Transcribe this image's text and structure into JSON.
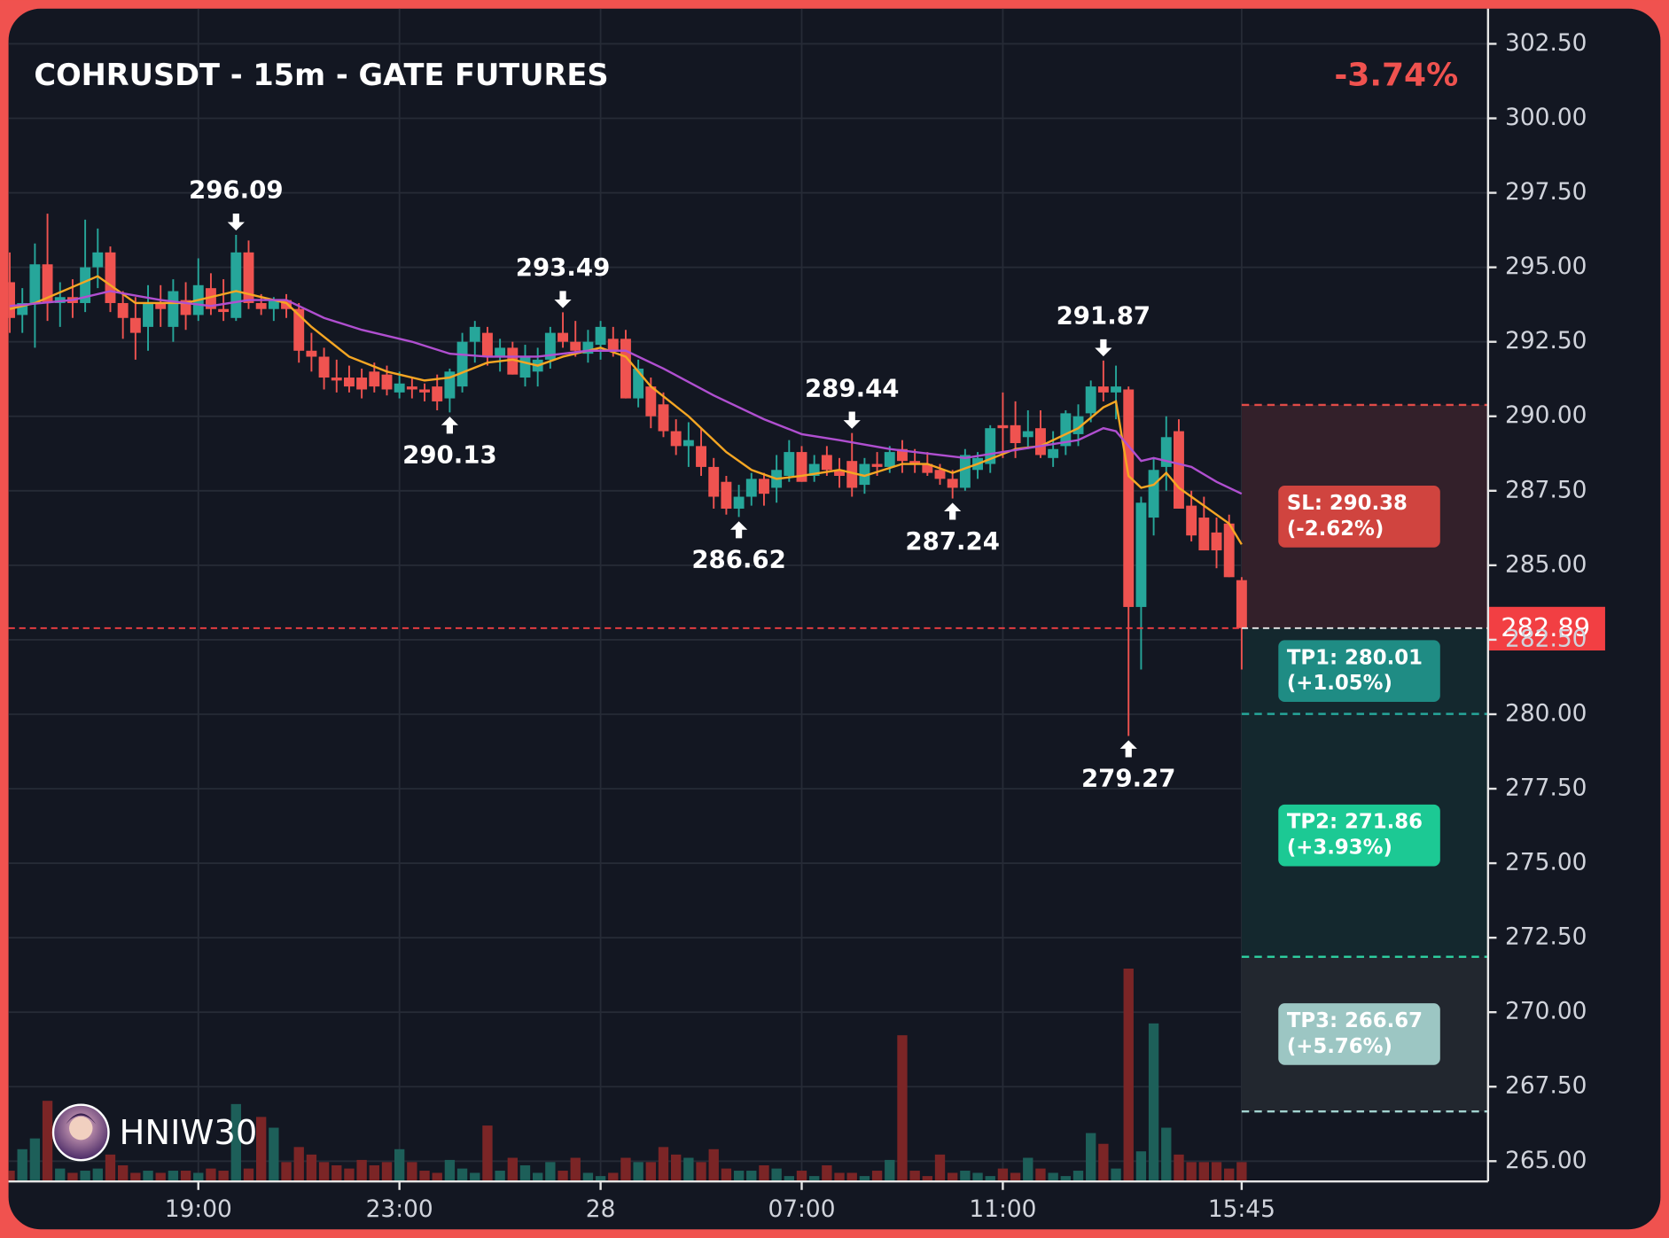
{
  "chart_data": {
    "type": "candlestick",
    "title": "COHRUSDT - 15m - GATE FUTURES",
    "change": "-3.74%",
    "watermark": "HNIW30",
    "up_color": "#26a69a",
    "down_color": "#ef5350",
    "volume_up_color": "#1d5f59",
    "volume_down_color": "#7b2526",
    "grid": true,
    "xlim": [
      -0.1,
      117.6
    ],
    "xticks": [
      {
        "value": 15,
        "label": "19:00"
      },
      {
        "value": 31,
        "label": "23:00"
      },
      {
        "value": 47,
        "label": "28"
      },
      {
        "value": 63,
        "label": "07:00"
      },
      {
        "value": 79,
        "label": "11:00"
      },
      {
        "value": 98,
        "label": "15:45"
      }
    ],
    "ylim": [
      264.32,
      303.68
    ],
    "yticks": [
      {
        "value": 302.5,
        "label": "302.50"
      },
      {
        "value": 300,
        "label": "300.00"
      },
      {
        "value": 297.5,
        "label": "297.50"
      },
      {
        "value": 295,
        "label": "295.00"
      },
      {
        "value": 292.5,
        "label": "292.50"
      },
      {
        "value": 290,
        "label": "290.00"
      },
      {
        "value": 287.5,
        "label": "287.50"
      },
      {
        "value": 285,
        "label": "285.00"
      },
      {
        "value": 282.5,
        "label": "282.50"
      },
      {
        "value": 280,
        "label": "280.00"
      },
      {
        "value": 277.5,
        "label": "277.50"
      },
      {
        "value": 275,
        "label": "275.00"
      },
      {
        "value": 272.5,
        "label": "272.50"
      },
      {
        "value": 270,
        "label": "270.00"
      },
      {
        "value": 267.5,
        "label": "267.50"
      },
      {
        "value": 265,
        "label": "265.00"
      }
    ],
    "open": [
      294.5,
      293.4,
      293.8,
      295.1,
      293.8,
      294.0,
      293.8,
      295.0,
      295.5,
      293.8,
      293.3,
      293.0,
      293.8,
      293.0,
      293.9,
      293.4,
      294.3,
      293.6,
      293.3,
      295.5,
      293.8,
      293.6,
      293.9,
      293.6,
      292.2,
      292.0,
      291.3,
      291.3,
      291.3,
      291.5,
      291.4,
      290.8,
      291.0,
      290.9,
      291.0,
      290.6,
      291.0,
      292.5,
      292.8,
      292.0,
      292.3,
      291.3,
      291.5,
      291.9,
      292.8,
      292.5,
      292.1,
      292.4,
      292.6,
      292.6,
      290.6,
      291.0,
      290.4,
      289.5,
      289.0,
      289.0,
      288.3,
      287.8,
      286.9,
      287.3,
      287.9,
      287.6,
      288.0,
      288.8,
      288.0,
      288.7,
      288.2,
      288.5,
      287.7,
      288.4,
      288.3,
      288.9,
      288.5,
      288.4,
      288.2,
      287.9,
      287.6,
      288.2,
      288.4,
      289.7,
      289.7,
      289.3,
      289.6,
      288.6,
      289.0,
      289.4,
      290.1,
      291.0,
      290.8,
      290.9,
      283.6,
      286.6,
      288.3,
      289.5,
      287.0,
      286.6,
      286.1,
      286.4,
      284.5
    ],
    "high": [
      295.5,
      294.3,
      295.8,
      296.8,
      294.5,
      294.6,
      296.6,
      296.3,
      295.7,
      294.2,
      294.0,
      294.4,
      294.4,
      294.6,
      294.5,
      295.3,
      294.8,
      294.6,
      296.09,
      295.9,
      294.1,
      294.0,
      294.1,
      293.8,
      292.8,
      292.3,
      291.9,
      291.7,
      291.6,
      291.8,
      291.7,
      291.5,
      291.3,
      291.1,
      291.4,
      291.6,
      292.8,
      293.2,
      293.0,
      292.6,
      292.5,
      292.4,
      292.3,
      293.0,
      293.49,
      293.2,
      292.9,
      293.2,
      293.0,
      292.9,
      291.9,
      291.3,
      290.8,
      289.9,
      289.8,
      289.6,
      288.6,
      288.0,
      287.7,
      288.1,
      288.1,
      288.7,
      289.2,
      289.0,
      288.7,
      289.0,
      288.6,
      289.44,
      288.6,
      288.8,
      289.0,
      289.2,
      288.9,
      288.8,
      288.4,
      288.2,
      288.9,
      288.8,
      289.7,
      290.8,
      290.5,
      290.2,
      290.2,
      289.5,
      290.2,
      290.4,
      291.2,
      291.87,
      291.7,
      291.0,
      287.3,
      288.6,
      290.0,
      289.9,
      287.5,
      287.3,
      286.6,
      286.7,
      284.6
    ],
    "low": [
      292.8,
      292.8,
      292.3,
      293.2,
      293.0,
      293.3,
      293.5,
      294.3,
      293.5,
      292.6,
      291.9,
      292.2,
      293.0,
      292.5,
      292.9,
      293.2,
      293.4,
      293.2,
      293.2,
      293.6,
      293.4,
      293.2,
      293.3,
      291.8,
      291.5,
      290.9,
      290.8,
      290.8,
      290.6,
      290.8,
      290.7,
      290.6,
      290.6,
      290.5,
      290.2,
      290.13,
      290.8,
      291.8,
      291.7,
      291.5,
      291.4,
      291.0,
      291.0,
      291.6,
      292.3,
      292.0,
      291.8,
      291.9,
      292.0,
      290.6,
      290.3,
      289.6,
      289.3,
      288.7,
      288.3,
      288.0,
      286.9,
      286.7,
      286.62,
      287.0,
      287.0,
      287.1,
      287.8,
      287.8,
      287.8,
      288.0,
      287.6,
      287.3,
      287.4,
      288.0,
      288.1,
      288.1,
      288.1,
      288.0,
      287.7,
      287.24,
      287.5,
      287.9,
      288.1,
      288.6,
      288.6,
      288.9,
      288.6,
      288.3,
      288.7,
      289.0,
      289.8,
      290.5,
      289.9,
      279.27,
      281.5,
      286.0,
      287.5,
      286.9,
      285.8,
      285.5,
      284.9,
      284.6,
      281.5
    ],
    "close": [
      293.3,
      293.8,
      295.1,
      293.8,
      294.0,
      293.8,
      295.0,
      295.5,
      293.8,
      293.3,
      292.8,
      293.8,
      293.6,
      294.2,
      293.4,
      294.4,
      293.6,
      293.5,
      295.5,
      293.8,
      293.6,
      293.9,
      293.6,
      292.2,
      292.0,
      291.3,
      291.2,
      291.0,
      290.9,
      291.0,
      290.9,
      291.1,
      290.9,
      290.8,
      290.5,
      291.5,
      292.5,
      293.0,
      292.0,
      292.3,
      291.4,
      292.0,
      291.9,
      292.8,
      292.5,
      292.2,
      292.5,
      293.0,
      292.2,
      290.6,
      291.6,
      290.0,
      289.5,
      289.0,
      289.2,
      288.3,
      287.3,
      286.9,
      287.3,
      287.9,
      287.4,
      288.2,
      288.8,
      287.8,
      288.4,
      288.2,
      288.0,
      287.6,
      288.4,
      288.3,
      288.8,
      288.5,
      288.4,
      288.1,
      287.9,
      287.6,
      288.7,
      288.6,
      289.6,
      289.6,
      289.1,
      289.5,
      288.7,
      288.9,
      290.1,
      290.0,
      291.0,
      290.8,
      291.0,
      283.6,
      287.1,
      288.2,
      289.3,
      286.9,
      286.0,
      285.5,
      285.5,
      284.6,
      282.89
    ],
    "volume": [
      10,
      30,
      40,
      75,
      12,
      8,
      10,
      12,
      25,
      15,
      8,
      10,
      8,
      10,
      10,
      8,
      12,
      10,
      72,
      12,
      60,
      50,
      18,
      32,
      25,
      18,
      15,
      12,
      20,
      15,
      18,
      30,
      18,
      10,
      8,
      20,
      12,
      8,
      52,
      10,
      22,
      15,
      8,
      18,
      10,
      22,
      8,
      5,
      8,
      22,
      18,
      18,
      32,
      25,
      22,
      18,
      30,
      12,
      10,
      10,
      15,
      12,
      5,
      10,
      5,
      15,
      8,
      8,
      5,
      10,
      20,
      136,
      10,
      5,
      25,
      8,
      10,
      8,
      5,
      12,
      8,
      22,
      12,
      8,
      5,
      10,
      45,
      35,
      12,
      198,
      28,
      147,
      50,
      25,
      18,
      18,
      18,
      12,
      18
    ],
    "series": [
      {
        "color": "#f5a623",
        "x": [
          0,
          2,
          7,
          10,
          14,
          18,
          20,
          22,
          24,
          27,
          30,
          33,
          35,
          38,
          40,
          42,
          44,
          47,
          49,
          51,
          54,
          57,
          59,
          61,
          63,
          66,
          68,
          71,
          73,
          75,
          77,
          80,
          82,
          85,
          87,
          88,
          89,
          90,
          91,
          92,
          93,
          95,
          97,
          98
        ],
        "values": [
          293.6,
          293.8,
          294.7,
          293.8,
          293.8,
          294.2,
          294.0,
          293.8,
          293.0,
          292.0,
          291.5,
          291.2,
          291.3,
          291.8,
          291.9,
          291.7,
          292.0,
          292.3,
          292.0,
          291.0,
          290.0,
          288.8,
          288.2,
          287.9,
          288.0,
          288.2,
          288.0,
          288.4,
          288.4,
          288.1,
          288.4,
          288.9,
          289.0,
          289.6,
          290.3,
          290.5,
          288.0,
          287.6,
          287.7,
          288.1,
          287.6,
          287.0,
          286.4,
          285.7
        ]
      },
      {
        "color": "#b04fd0",
        "x": [
          0,
          5,
          8,
          12,
          16,
          19,
          22,
          25,
          28,
          32,
          35,
          38,
          42,
          46,
          49,
          52,
          56,
          60,
          63,
          66,
          70,
          74,
          76,
          79,
          82,
          85,
          87,
          88,
          90,
          91,
          94,
          96,
          98
        ],
        "values": [
          293.7,
          293.9,
          294.2,
          293.9,
          293.7,
          293.9,
          293.9,
          293.3,
          292.9,
          292.5,
          292.1,
          292.0,
          292.0,
          292.2,
          292.2,
          291.6,
          290.7,
          289.9,
          289.4,
          289.2,
          288.9,
          288.7,
          288.6,
          288.8,
          289.0,
          289.2,
          289.6,
          289.5,
          288.5,
          288.6,
          288.3,
          287.8,
          287.4
        ]
      }
    ],
    "annotations": [
      {
        "x": 18,
        "value": 296.09,
        "side": "high"
      },
      {
        "x": 35,
        "value": 290.13,
        "side": "low"
      },
      {
        "x": 44,
        "value": 293.49,
        "side": "high"
      },
      {
        "x": 58,
        "value": 286.62,
        "side": "low"
      },
      {
        "x": 67,
        "value": 289.44,
        "side": "high"
      },
      {
        "x": 75,
        "value": 287.24,
        "side": "low"
      },
      {
        "x": 87,
        "value": 291.87,
        "side": "high"
      },
      {
        "x": 89,
        "value": 279.27,
        "side": "low"
      }
    ],
    "current_price": 282.89,
    "current_price_color": "#f23f43",
    "levels": [
      {
        "label": "SL: 290.38",
        "change": "(-2.62%)",
        "value": 290.38,
        "color": "#e04a47",
        "box_color": "#d0443f",
        "zone_color": "#33202a"
      },
      {
        "label": "TP1: 280.01",
        "change": "(+1.05%)",
        "value": 280.01,
        "color": "#26a69a",
        "box_color": "#1f8c84",
        "zone_color": "#14282e"
      },
      {
        "label": "TP2: 271.86",
        "change": "(+3.93%)",
        "value": 271.86,
        "color": "#2ed3a3",
        "box_color": "#1cc994",
        "zone_color": "#14282e"
      },
      {
        "label": "TP3: 266.67",
        "change": "(+5.76%)",
        "value": 266.67,
        "color": "#a2d3d0",
        "box_color": "#9cc6c3",
        "zone_color": "#22272f"
      }
    ]
  }
}
